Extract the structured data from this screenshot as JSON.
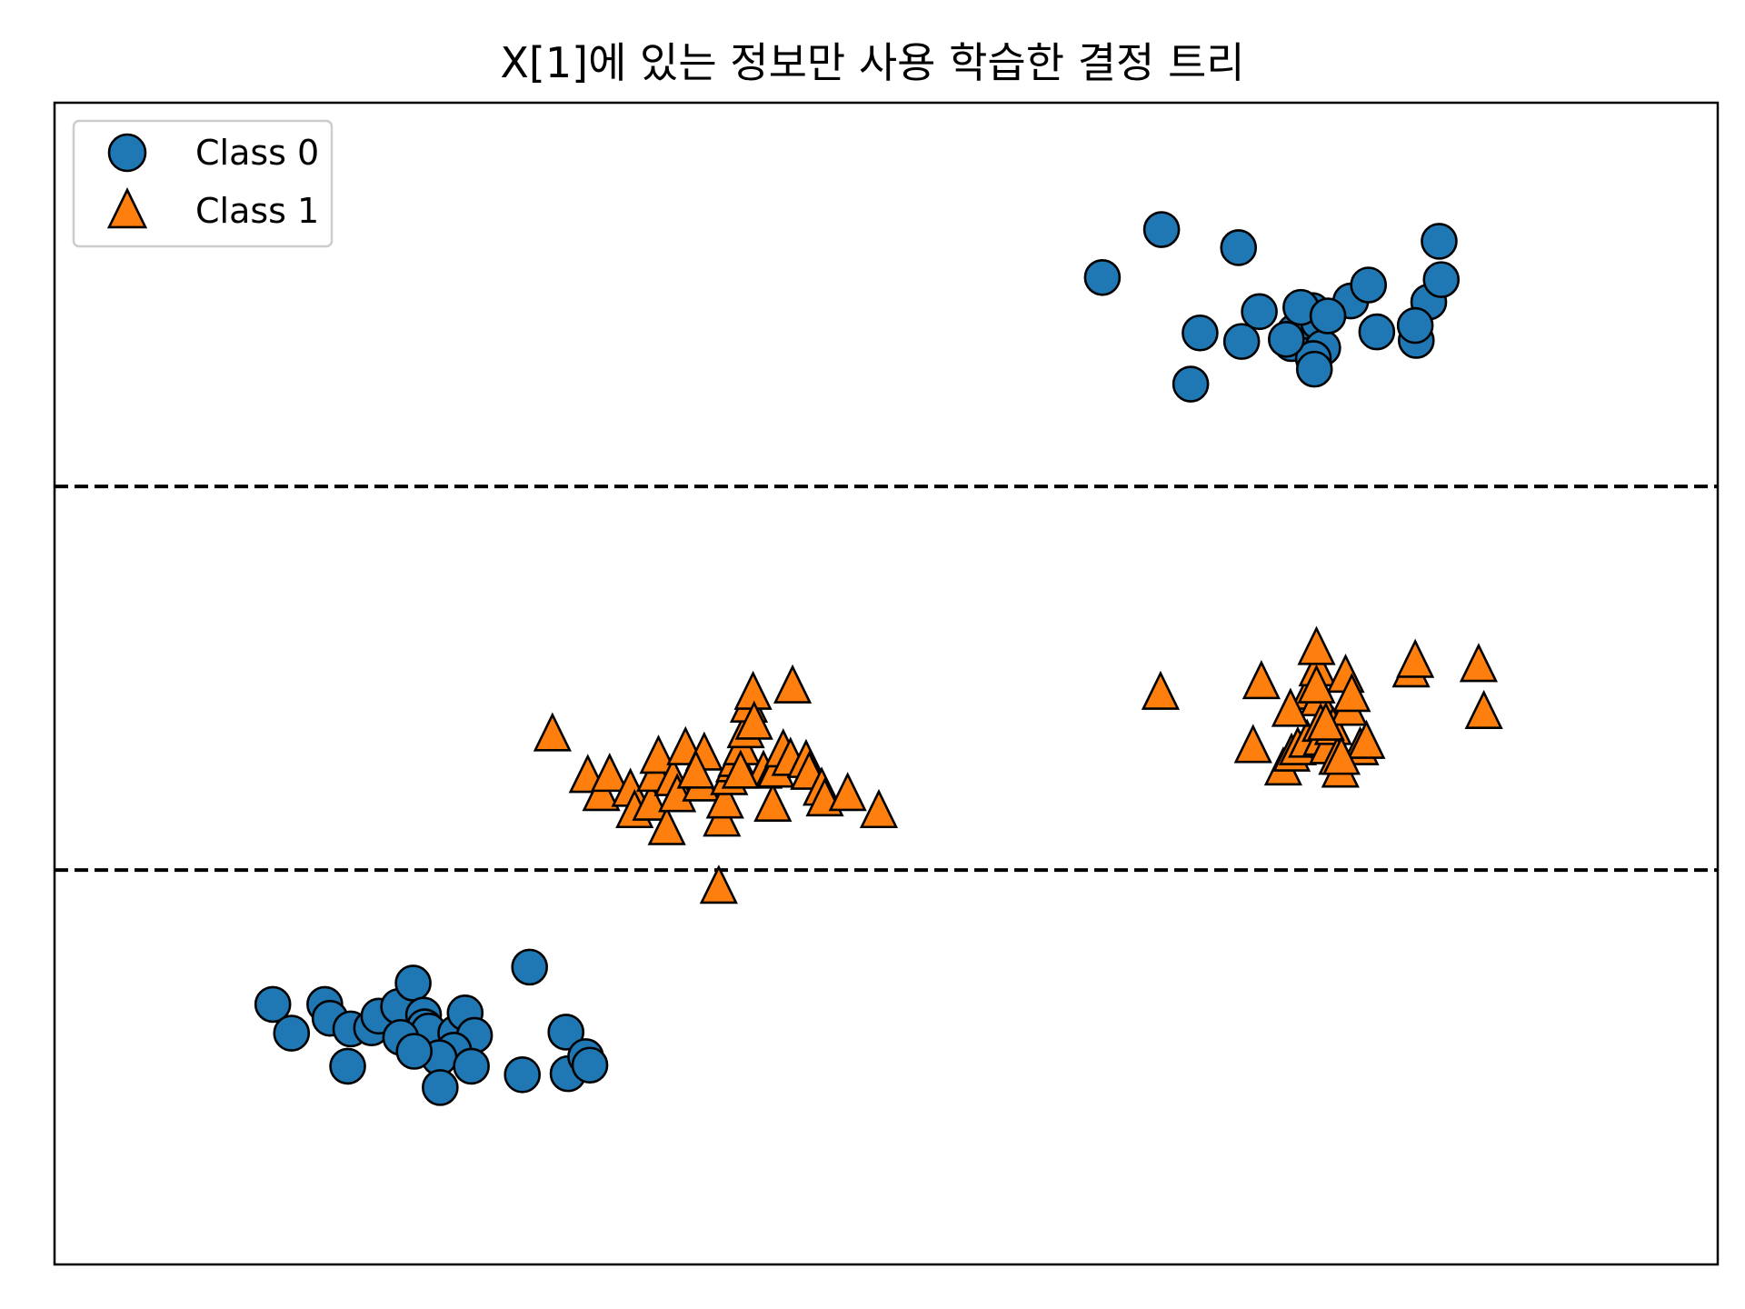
{
  "chart_data": {
    "type": "scatter",
    "title": "X[1]에 있는 정보만 사용 학습한 결정 트리",
    "xlabel": "",
    "ylabel": "",
    "xlim": [
      0,
      1600
    ],
    "ylim": [
      0,
      1090
    ],
    "ticks_visible": false,
    "grid": false,
    "legend_position": "upper-left",
    "decision_boundaries": {
      "y": [
        730,
        370
      ],
      "style": "dashed",
      "color": "#000000"
    },
    "series": [
      {
        "name": "Class 0",
        "marker": "circle",
        "color": "#1f77b4",
        "points": [
          [
            1008,
            926
          ],
          [
            1065,
            971
          ],
          [
            1139,
            954
          ],
          [
            1093,
            826
          ],
          [
            1102,
            874
          ],
          [
            1142,
            866
          ],
          [
            1159,
            894
          ],
          [
            1193,
            875
          ],
          [
            1190,
            864
          ],
          [
            1208,
            871
          ],
          [
            1205,
            885
          ],
          [
            1210,
            895
          ],
          [
            1216,
            884
          ],
          [
            1220,
            860
          ],
          [
            1211,
            850
          ],
          [
            1212,
            840
          ],
          [
            1247,
            904
          ],
          [
            1264,
            919
          ],
          [
            1272,
            875
          ],
          [
            1310,
            867
          ],
          [
            1322,
            903
          ],
          [
            1332,
            960
          ],
          [
            1334,
            924
          ],
          [
            1309,
            881
          ],
          [
            1199,
            898
          ],
          [
            1225,
            890
          ],
          [
            1185,
            868
          ],
          [
            210,
            244
          ],
          [
            260,
            244
          ],
          [
            265,
            231
          ],
          [
            228,
            217
          ],
          [
            285,
            221
          ],
          [
            282,
            186
          ],
          [
            305,
            222
          ],
          [
            312,
            233
          ],
          [
            331,
            242
          ],
          [
            345,
            264
          ],
          [
            355,
            234
          ],
          [
            356,
            223
          ],
          [
            360,
            219
          ],
          [
            386,
            217
          ],
          [
            395,
            236
          ],
          [
            404,
            215
          ],
          [
            384,
            201
          ],
          [
            370,
            194
          ],
          [
            371,
            166
          ],
          [
            401,
            186
          ],
          [
            450,
            178
          ],
          [
            457,
            279
          ],
          [
            494,
            179
          ],
          [
            492,
            218
          ],
          [
            511,
            195
          ],
          [
            515,
            187
          ],
          [
            333,
            213
          ],
          [
            346,
            200
          ]
        ]
      },
      {
        "name": "Class 1",
        "marker": "triangle",
        "color": "#ff7f0e",
        "points": [
          [
            1064,
            536
          ],
          [
            1161,
            546
          ],
          [
            1153,
            486
          ],
          [
            1182,
            465
          ],
          [
            1190,
            478
          ],
          [
            1196,
            484
          ],
          [
            1205,
            491
          ],
          [
            1207,
            536
          ],
          [
            1215,
            558
          ],
          [
            1214,
            578
          ],
          [
            1216,
            530
          ],
          [
            1218,
            506
          ],
          [
            1219,
            493
          ],
          [
            1225,
            485
          ],
          [
            1230,
            503
          ],
          [
            1234,
            475
          ],
          [
            1237,
            463
          ],
          [
            1242,
            552
          ],
          [
            1245,
            521
          ],
          [
            1248,
            534
          ],
          [
            1256,
            484
          ],
          [
            1262,
            490
          ],
          [
            1305,
            557
          ],
          [
            1309,
            566
          ],
          [
            1370,
            562
          ],
          [
            1375,
            518
          ],
          [
            1189,
            520
          ],
          [
            1223,
            507
          ],
          [
            1238,
            475
          ],
          [
            1214,
            542
          ],
          [
            479,
            497
          ],
          [
            513,
            458
          ],
          [
            526,
            441
          ],
          [
            534,
            459
          ],
          [
            554,
            445
          ],
          [
            558,
            425
          ],
          [
            574,
            432
          ],
          [
            578,
            459
          ],
          [
            581,
            476
          ],
          [
            589,
            409
          ],
          [
            595,
            455
          ],
          [
            599,
            440
          ],
          [
            607,
            484
          ],
          [
            622,
            450
          ],
          [
            625,
            479
          ],
          [
            639,
            354
          ],
          [
            642,
            417
          ],
          [
            645,
            434
          ],
          [
            649,
            456
          ],
          [
            654,
            468
          ],
          [
            656,
            473
          ],
          [
            661,
            484
          ],
          [
            665,
            500
          ],
          [
            668,
            524
          ],
          [
            672,
            536
          ],
          [
            673,
            508
          ],
          [
            682,
            462
          ],
          [
            691,
            431
          ],
          [
            692,
            463
          ],
          [
            694,
            463
          ],
          [
            701,
            482
          ],
          [
            708,
            474
          ],
          [
            710,
            542
          ],
          [
            723,
            472
          ],
          [
            726,
            461
          ],
          [
            738,
            446
          ],
          [
            741,
            436
          ],
          [
            763,
            441
          ],
          [
            793,
            425
          ],
          [
            660,
            462
          ],
          [
            617,
            462
          ]
        ]
      }
    ]
  }
}
